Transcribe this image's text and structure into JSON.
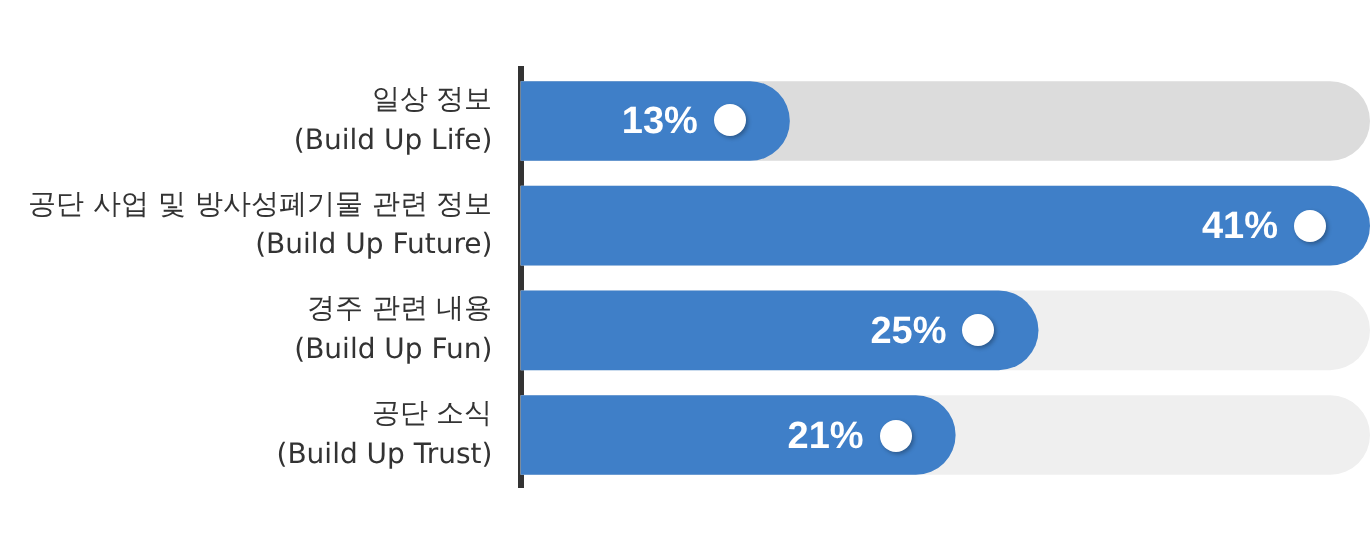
{
  "chart_data": {
    "type": "bar",
    "orientation": "horizontal",
    "categories": [
      "일상 정보\n(Build Up Life)",
      "공단 사업 및 방사성폐기물 관련 정보\n(Build Up Future)",
      "경주 관련 내용\n(Build Up Fun)",
      "공단 소식\n(Build Up Trust)"
    ],
    "values": [
      13,
      41,
      25,
      21
    ],
    "value_labels": [
      "13%",
      "41%",
      "25%",
      "21%"
    ],
    "color": "#3f7fc8",
    "xlim": [
      0,
      41
    ],
    "grid": false,
    "legend": false,
    "tick_labels": "y"
  }
}
